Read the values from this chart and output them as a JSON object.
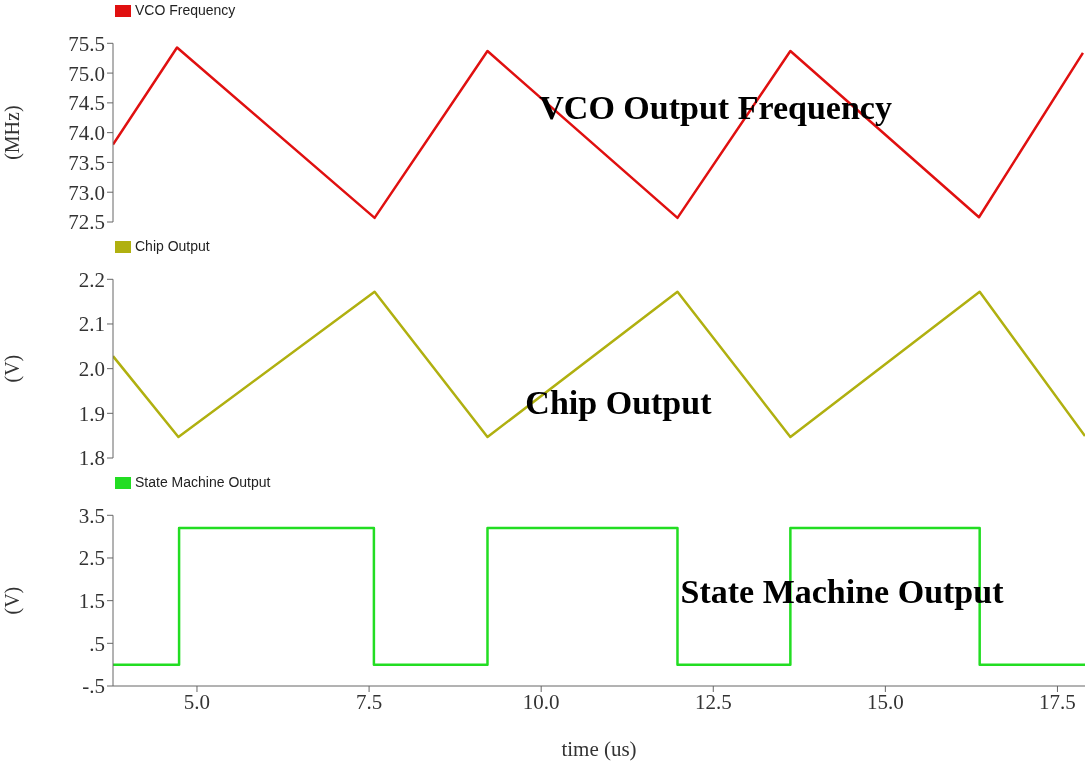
{
  "chart_data": [
    {
      "type": "line",
      "ylabel": "(MHz)",
      "annotations": [
        "VCO Output Frequency"
      ],
      "legend": "top left",
      "marker": "none",
      "tick_labels": "y",
      "xlim": [
        3.78,
        17.9
      ],
      "ylim": [
        72.5,
        75.5
      ],
      "yticks": [
        72.5,
        {
          "value": 73,
          "label": "73.0"
        },
        73.5,
        {
          "value": 74,
          "label": "74.0"
        },
        74.5,
        {
          "value": 75,
          "label": "75.0"
        },
        75.5
      ],
      "series": [
        {
          "name": "VCO Frequency",
          "color": "#e01010",
          "x": [
            3.78,
            4.71,
            7.58,
            9.22,
            11.98,
            13.62,
            16.36,
            17.87
          ],
          "values": [
            73.8,
            75.43,
            72.57,
            75.37,
            72.57,
            75.37,
            72.58,
            75.34
          ]
        }
      ]
    },
    {
      "type": "line",
      "ylabel": "(V)",
      "annotations": [
        "Chip Output"
      ],
      "legend": "top left",
      "marker": "none",
      "tick_labels": "y",
      "xlim": [
        3.78,
        17.9
      ],
      "ylim": [
        1.8,
        2.2
      ],
      "yticks": [
        1.8,
        1.9,
        {
          "value": 2,
          "label": "2.0"
        },
        2.1,
        2.2
      ],
      "series": [
        {
          "name": "Chip Output",
          "color": "#b0b010",
          "x": [
            3.78,
            4.73,
            7.58,
            9.22,
            11.98,
            13.62,
            16.37,
            17.9
          ],
          "values": [
            2.028,
            1.847,
            2.172,
            1.847,
            2.172,
            1.847,
            2.172,
            1.849
          ]
        }
      ]
    },
    {
      "type": "step",
      "xlabel": "time (us)",
      "ylabel": "(V)",
      "annotations": [
        "State Machine Output"
      ],
      "legend": "top left",
      "marker": "none",
      "xlim": [
        3.78,
        17.9
      ],
      "ylim": [
        -0.5,
        3.5
      ],
      "xticks": [
        {
          "value": 5,
          "label": "5.0"
        },
        7.5,
        {
          "value": 10,
          "label": "10.0"
        },
        12.5,
        {
          "value": 15,
          "label": "15.0"
        },
        17.5
      ],
      "yticks": [
        {
          "value": -0.5,
          "label": "-.5"
        },
        {
          "value": 0.5,
          "label": ".5"
        },
        1.5,
        2.5,
        3.5
      ],
      "series": [
        {
          "name": "State Machine Output",
          "color": "#22dd22",
          "x": [
            3.78,
            4.74,
            7.57,
            9.22,
            11.98,
            13.62,
            16.37,
            17.9
          ],
          "values": [
            0,
            3.2,
            0,
            3.2,
            0,
            3.2,
            0,
            0
          ]
        }
      ]
    }
  ]
}
